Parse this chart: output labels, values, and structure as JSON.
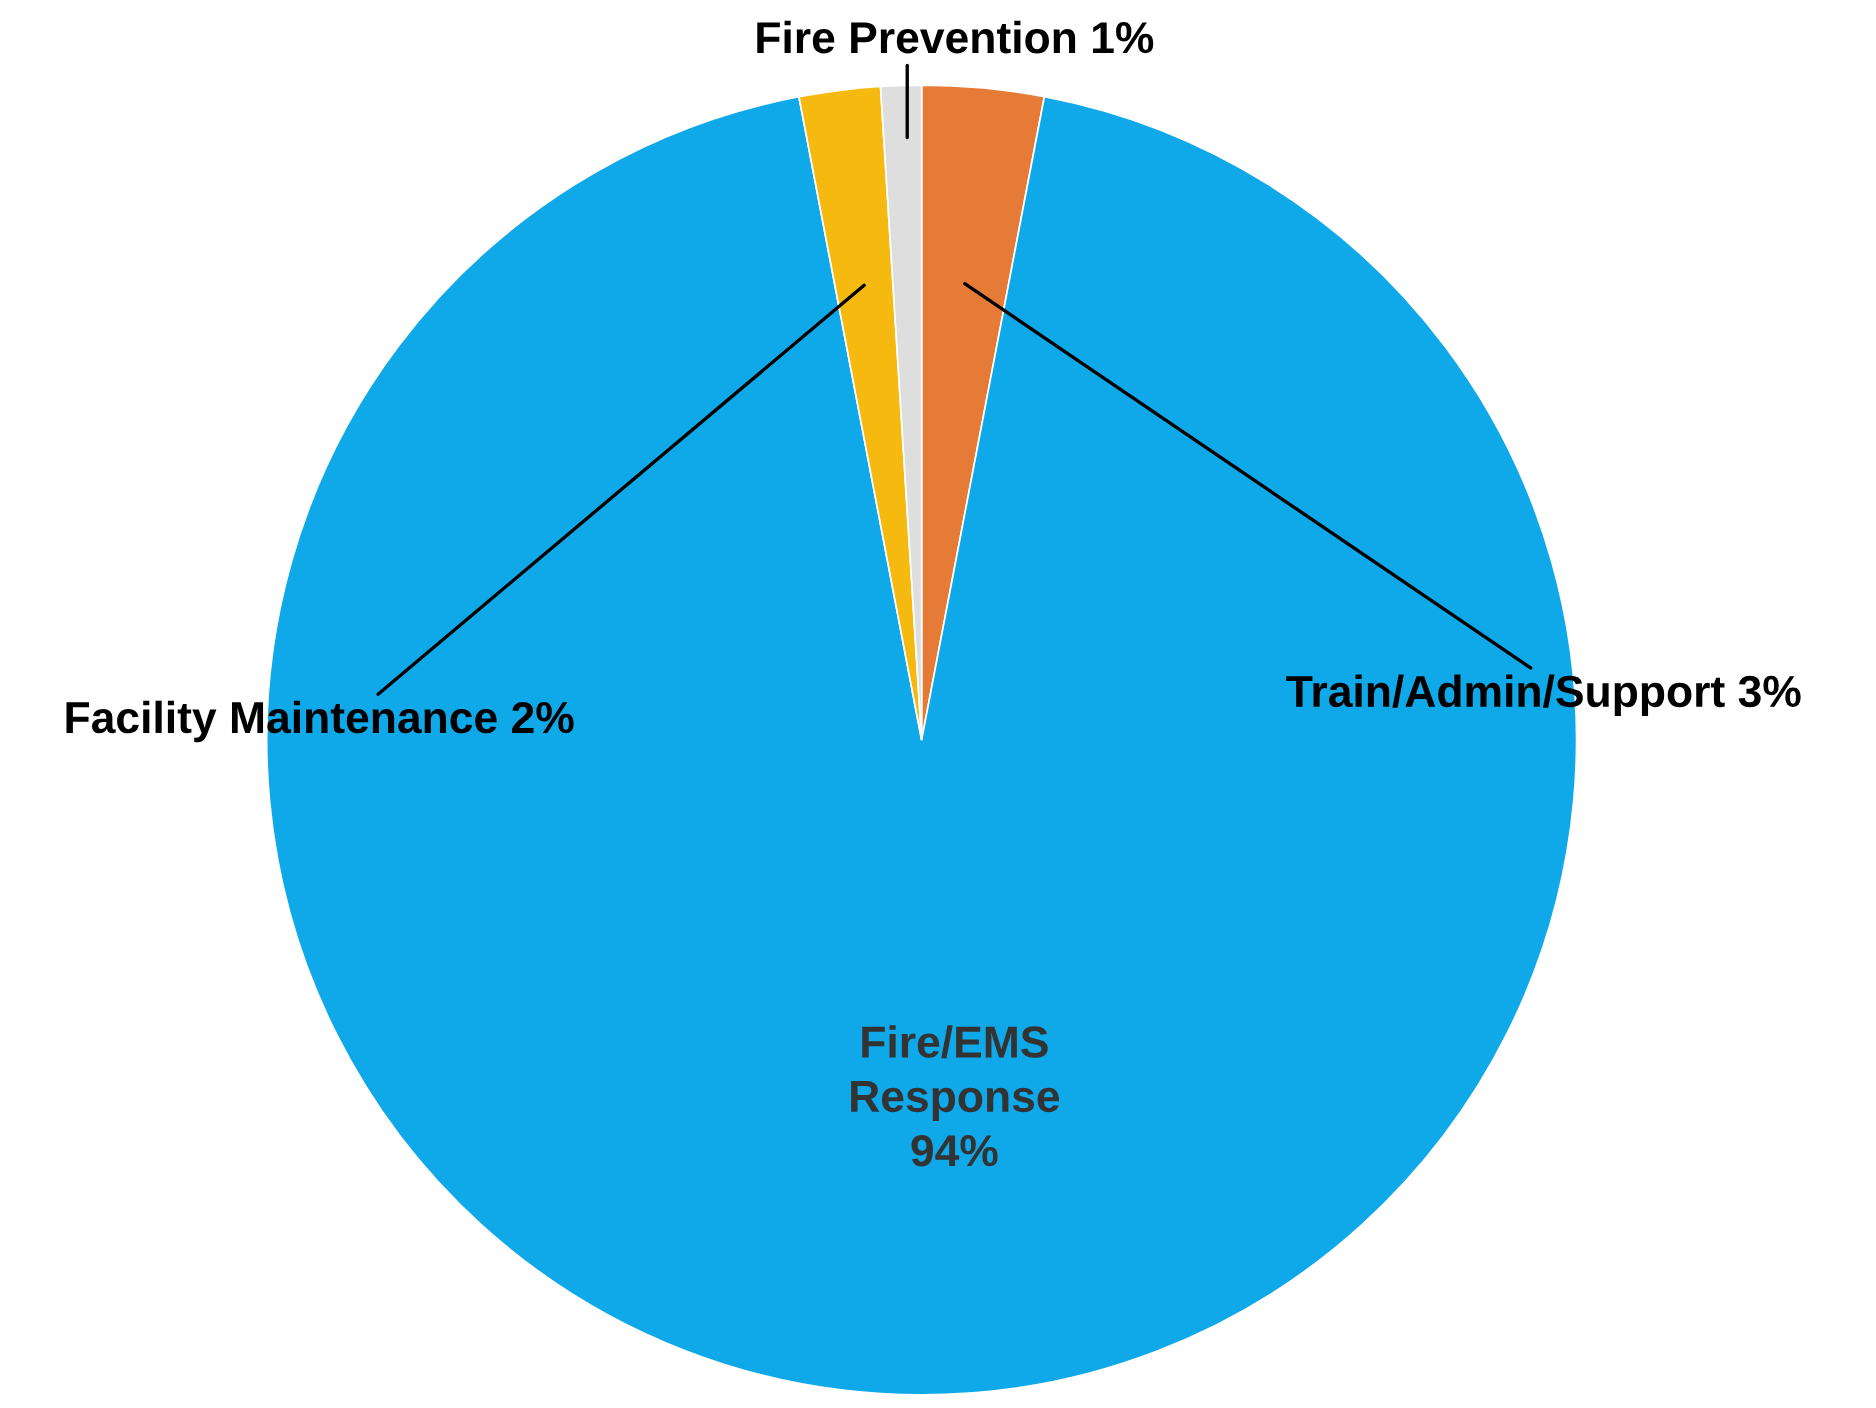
{
  "chart_data": {
    "type": "pie",
    "categories": [
      "Train/Admin/Support",
      "Fire/EMS Response",
      "Facility Maintenance",
      "Fire Prevention"
    ],
    "values": [
      3,
      94,
      2,
      1
    ],
    "value_labels": [
      "3%",
      "94%",
      "2%",
      "1%"
    ],
    "colors": [
      "#e57b36",
      "#0fa8e8",
      "#f6b90f",
      "#dedede"
    ],
    "legend": false
  }
}
